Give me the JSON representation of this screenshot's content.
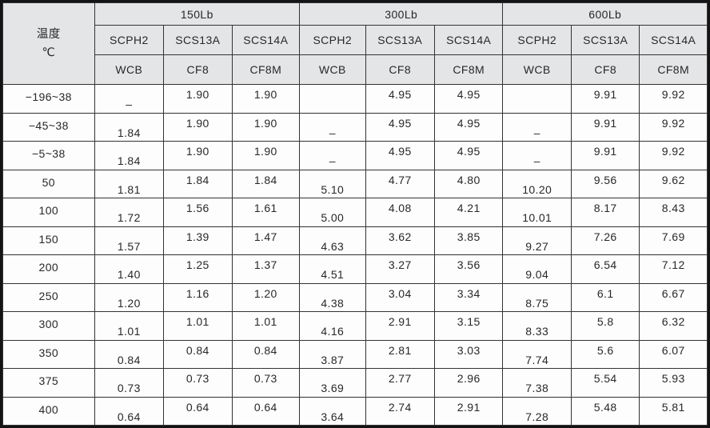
{
  "colors": {
    "header_bg": "#e4e5e7",
    "grid_line": "#333336",
    "outer_border": "#141414",
    "cell_bg": "#fdfdfd"
  },
  "table": {
    "temp_header": {
      "line1": "温度",
      "line2": "℃"
    },
    "pressure_classes": [
      "150Lb",
      "300Lb",
      "600Lb"
    ],
    "grades_per_class": [
      "SCPH2",
      "SCS13A",
      "SCS14A"
    ],
    "astm_per_class": [
      "WCB",
      "CF8",
      "CF8M"
    ],
    "rows": [
      {
        "temp": "−196~38",
        "values": [
          "–",
          "1.90",
          "1.90",
          "",
          "4.95",
          "4.95",
          "",
          "9.91",
          "9.92"
        ]
      },
      {
        "temp": "−45~38",
        "values": [
          "1.84",
          "1.90",
          "1.90",
          "–",
          "4.95",
          "4.95",
          "–",
          "9.91",
          "9.92"
        ]
      },
      {
        "temp": "−5~38",
        "values": [
          "1.84",
          "1.90",
          "1.90",
          "–",
          "4.95",
          "4.95",
          "–",
          "9.91",
          "9.92"
        ]
      },
      {
        "temp": "50",
        "values": [
          "1.81",
          "1.84",
          "1.84",
          "5.10",
          "4.77",
          "4.80",
          "10.20",
          "9.56",
          "9.62"
        ]
      },
      {
        "temp": "100",
        "values": [
          "1.72",
          "1.56",
          "1.61",
          "5.00",
          "4.08",
          "4.21",
          "10.01",
          "8.17",
          "8.43"
        ]
      },
      {
        "temp": "150",
        "values": [
          "1.57",
          "1.39",
          "1.47",
          "4.63",
          "3.62",
          "3.85",
          "9.27",
          "7.26",
          "7.69"
        ]
      },
      {
        "temp": "200",
        "values": [
          "1.40",
          "1.25",
          "1.37",
          "4.51",
          "3.27",
          "3.56",
          "9.04",
          "6.54",
          "7.12"
        ]
      },
      {
        "temp": "250",
        "values": [
          "1.20",
          "1.16",
          "1.20",
          "4.38",
          "3.04",
          "3.34",
          "8.75",
          "6.1",
          "6.67"
        ]
      },
      {
        "temp": "300",
        "values": [
          "1.01",
          "1.01",
          "1.01",
          "4.16",
          "2.91",
          "3.15",
          "8.33",
          "5.8",
          "6.32"
        ]
      },
      {
        "temp": "350",
        "values": [
          "0.84",
          "0.84",
          "0.84",
          "3.87",
          "2.81",
          "3.03",
          "7.74",
          "5.6",
          "6.07"
        ]
      },
      {
        "temp": "375",
        "values": [
          "0.73",
          "0.73",
          "0.73",
          "3.69",
          "2.77",
          "2.96",
          "7.38",
          "5.54",
          "5.93"
        ]
      },
      {
        "temp": "400",
        "values": [
          "0.64",
          "0.64",
          "0.64",
          "3.64",
          "2.74",
          "2.91",
          "7.28",
          "5.48",
          "5.81"
        ]
      }
    ]
  }
}
